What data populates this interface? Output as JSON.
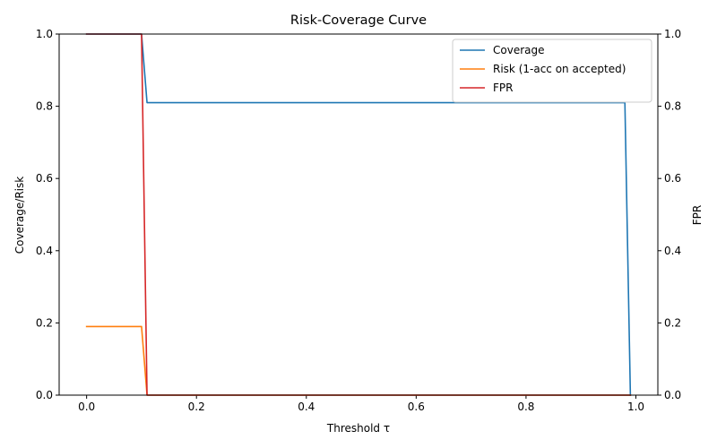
{
  "chart_data": {
    "type": "line",
    "title": "Risk-Coverage Curve",
    "xlabel": "Threshold τ",
    "ylabel": "Coverage/Risk",
    "y2label": "FPR",
    "xlim": [
      -0.05,
      1.04
    ],
    "ylim": [
      0,
      1
    ],
    "y2lim": [
      0,
      1
    ],
    "x_ticks": [
      0.0,
      0.2,
      0.4,
      0.6,
      0.8,
      1.0
    ],
    "x_tick_labels": [
      "0.0",
      "0.2",
      "0.4",
      "0.6",
      "0.8",
      "1.0"
    ],
    "y_ticks": [
      0.0,
      0.2,
      0.4,
      0.6,
      0.8,
      1.0
    ],
    "y_tick_labels": [
      "0.0",
      "0.2",
      "0.4",
      "0.6",
      "0.8",
      "1.0"
    ],
    "y2_ticks": [
      0.0,
      0.2,
      0.4,
      0.6,
      0.8,
      1.0
    ],
    "y2_tick_labels": [
      "0.0",
      "0.2",
      "0.4",
      "0.6",
      "0.8",
      "1.0"
    ],
    "grid": false,
    "legend_position": "top-right",
    "series": [
      {
        "name": "Coverage",
        "color": "#1f77b4",
        "axis": "left",
        "x": [
          0.0,
          0.1,
          0.11,
          0.98,
          0.99
        ],
        "y": [
          1.0,
          1.0,
          0.81,
          0.81,
          0.0
        ]
      },
      {
        "name": "Risk (1-acc on accepted)",
        "color": "#ff7f0e",
        "axis": "left",
        "x": [
          0.0,
          0.1,
          0.11,
          0.98,
          0.99
        ],
        "y": [
          0.19,
          0.19,
          0.0,
          0.0,
          0.0
        ]
      },
      {
        "name": "FPR",
        "color": "#d62728",
        "axis": "right",
        "x": [
          0.0,
          0.1,
          0.11,
          0.98,
          0.99
        ],
        "y": [
          1.0,
          1.0,
          0.0,
          0.0,
          0.0
        ]
      }
    ]
  }
}
